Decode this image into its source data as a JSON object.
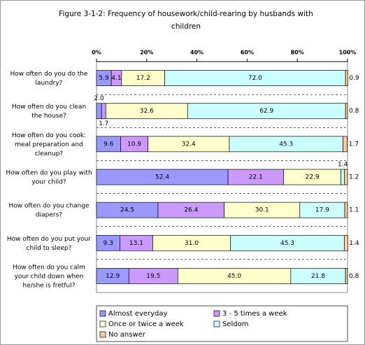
{
  "chart_data": {
    "type": "stacked-barh",
    "title": "Figure 3-1-2: Frequency of housework/child-rearing by husbands with\nchildren",
    "categories": [
      "How often do you do the\nlaundry?",
      "How often do you clean\nthe house?",
      "How often do you cook:\nmeal preparation and\ncleanup?",
      "How often do you play with\nyour child?",
      "How often do you change\ndiapers?",
      "How often do you put your\nchild to sleep?",
      "How often do you calm\nyour child down when\nhe/she is fretful?"
    ],
    "series": [
      {
        "name": "Almost everyday",
        "color": "#9999ff",
        "values": [
          5.9,
          2.0,
          9.6,
          52.4,
          24.5,
          9.3,
          12.9
        ],
        "value_labels": [
          "5.9",
          "2.0",
          "9.6",
          "52.4",
          "24.5",
          "9.3",
          "12.9"
        ]
      },
      {
        "name": "3 - 5 times a week",
        "color": "#cc99ff",
        "values": [
          4.1,
          1.7,
          10.9,
          22.1,
          26.4,
          13.1,
          19.5
        ],
        "value_labels": [
          "4.1",
          "1.7",
          "10.9",
          "22.1",
          "26.4",
          "13.1",
          "19.5"
        ]
      },
      {
        "name": "Once or twice a week",
        "color": "#ffffcc",
        "values": [
          17.2,
          32.6,
          32.4,
          22.9,
          30.1,
          31.0,
          45.0
        ],
        "value_labels": [
          "17.2",
          "32.6",
          "32.4",
          "22.9",
          "30.1",
          "31.0",
          "45.0"
        ]
      },
      {
        "name": "Seldom",
        "color": "#ccffff",
        "values": [
          72.0,
          62.9,
          45.3,
          1.4,
          17.9,
          45.3,
          21.8
        ],
        "value_labels": [
          "72.0",
          "62.9",
          "45.3",
          "1.4",
          "17.9",
          "45.3",
          "21.8"
        ]
      },
      {
        "name": "No answer",
        "color": "#ffcc99",
        "values": [
          0.9,
          0.8,
          1.7,
          1.2,
          1.1,
          1.4,
          0.8
        ],
        "value_labels": [
          "0.9",
          "0.8",
          "1.7",
          "1.2",
          "1.1",
          "1.4",
          "0.8"
        ]
      }
    ],
    "xlim": [
      0,
      100
    ],
    "xticks": [
      {
        "value": 0,
        "label": "0%"
      },
      {
        "value": 20,
        "label": "20%"
      },
      {
        "value": 40,
        "label": "40%"
      },
      {
        "value": 60,
        "label": "60%"
      },
      {
        "value": 80,
        "label": "80%"
      },
      {
        "value": 100,
        "label": "100%"
      }
    ]
  }
}
